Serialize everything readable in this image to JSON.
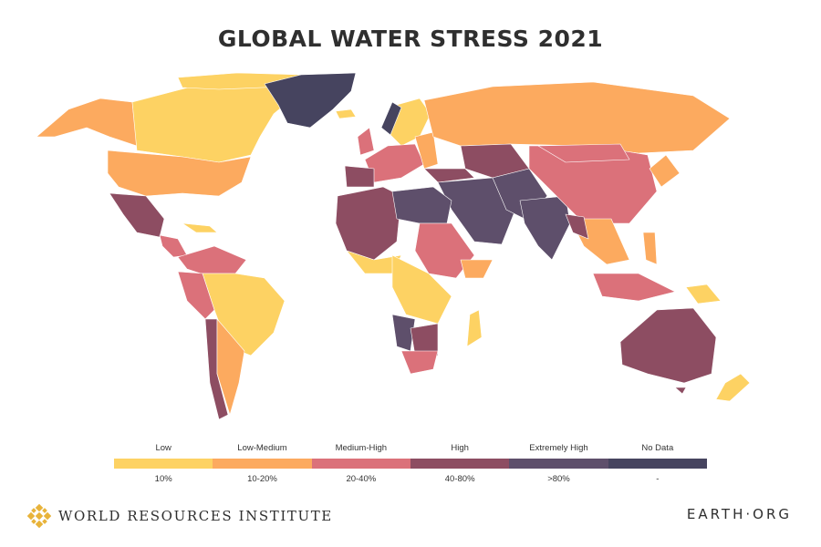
{
  "title": "GLOBAL WATER STRESS 2021",
  "colors": {
    "low": "#fdd263",
    "low_medium": "#fcaa5f",
    "medium_high": "#db717a",
    "high": "#8d4d62",
    "extremely_high": "#5e4f6b",
    "no_data": "#46445f"
  },
  "legend": [
    {
      "label": "Low",
      "value": "10%",
      "color": "#fdd263"
    },
    {
      "label": "Low-Medium",
      "value": "10-20%",
      "color": "#fcaa5f"
    },
    {
      "label": "Medium-High",
      "value": "20-40%",
      "color": "#db717a"
    },
    {
      "label": "High",
      "value": "40-80%",
      "color": "#8d4d62"
    },
    {
      "label": "Extremely High",
      "value": ">80%",
      "color": "#5e4f6b"
    },
    {
      "label": "No Data",
      "value": "-",
      "color": "#46445f"
    }
  ],
  "footer": {
    "left": "WORLD RESOURCES INSTITUTE",
    "right": "EARTH·ORG"
  }
}
